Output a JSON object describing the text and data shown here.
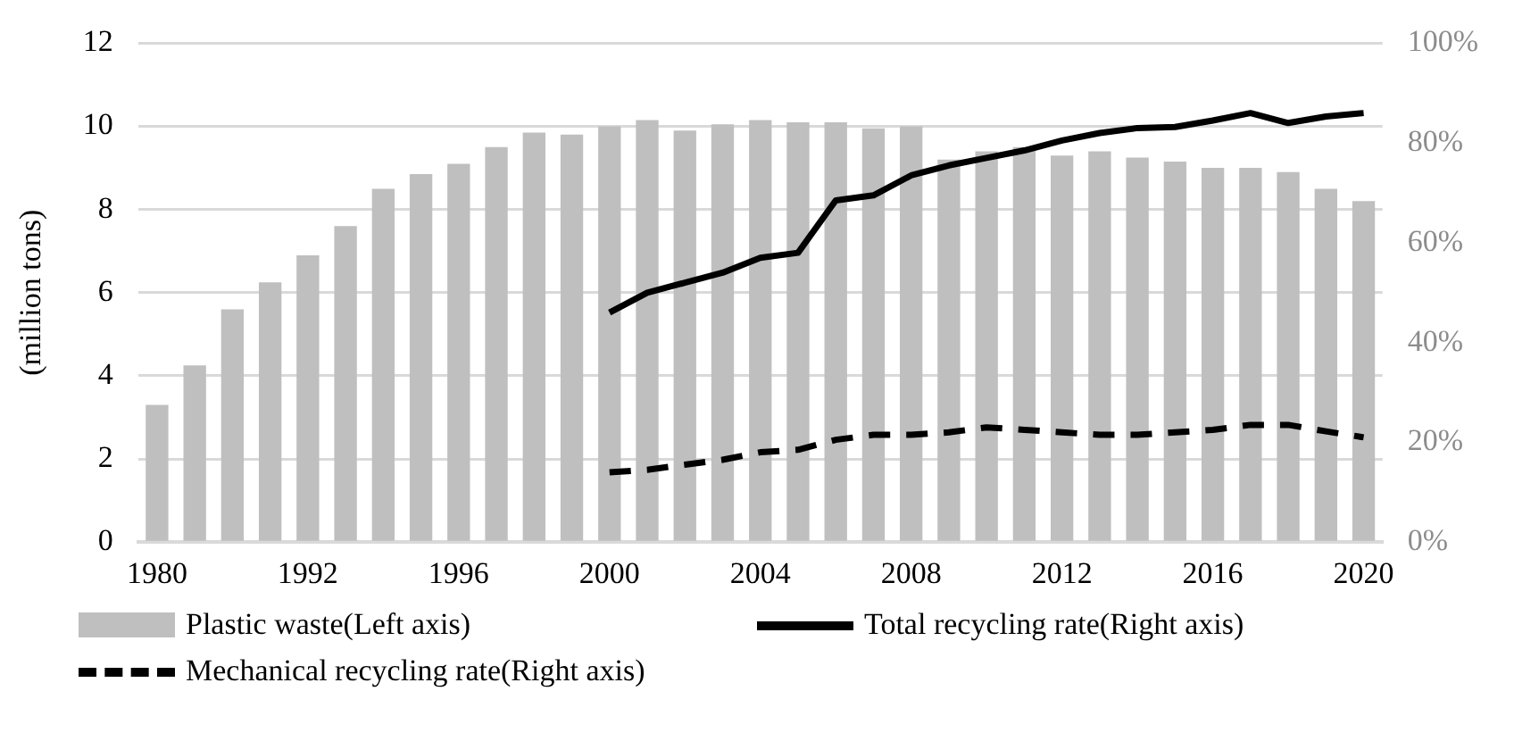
{
  "chart_data": {
    "type": "bar",
    "ylabel": "(million tons)",
    "categories": [
      "1980",
      null,
      null,
      null,
      "1992",
      null,
      null,
      null,
      "1996",
      null,
      null,
      null,
      "2000",
      null,
      null,
      null,
      "2004",
      null,
      null,
      null,
      "2008",
      null,
      null,
      null,
      "2012",
      null,
      null,
      null,
      "2016",
      null,
      null,
      null,
      "2020"
    ],
    "series": [
      {
        "name": "Plastic waste(Left axis)",
        "color": "#bfbfbf",
        "values": [
          3.3,
          4.25,
          5.6,
          6.25,
          6.9,
          7.6,
          8.5,
          8.85,
          9.1,
          9.5,
          9.85,
          9.8,
          10.0,
          10.15,
          9.9,
          10.05,
          10.15,
          10.1,
          10.1,
          9.95,
          10.0,
          9.2,
          9.4,
          9.5,
          9.3,
          9.4,
          9.25,
          9.15,
          9.0,
          9.0,
          8.9,
          8.5,
          8.2
        ]
      },
      {
        "name": "Total recycling rate(Right axis)",
        "type": "line",
        "axis": "y2",
        "color": "#000000",
        "line_style": "solid",
        "values": [
          null,
          null,
          null,
          null,
          null,
          null,
          null,
          null,
          null,
          null,
          null,
          null,
          46,
          50,
          52,
          54,
          57,
          58,
          68.5,
          69.5,
          73.5,
          75.5,
          77,
          78.5,
          80.5,
          82,
          83,
          83.2,
          84.5,
          86,
          84,
          85.3,
          86
        ]
      },
      {
        "name": "Mechanical recycling rate(Right axis)",
        "type": "line",
        "axis": "y2",
        "color": "#000000",
        "line_style": "dashed",
        "values": [
          null,
          null,
          null,
          null,
          null,
          null,
          null,
          null,
          null,
          null,
          null,
          null,
          14,
          14.5,
          15.5,
          16.5,
          18,
          18.5,
          20.5,
          21.5,
          21.5,
          22,
          23,
          22.5,
          22,
          21.5,
          21.5,
          22,
          22.5,
          23.5,
          23.5,
          22.2,
          21
        ]
      }
    ],
    "ylim": [
      0,
      12
    ],
    "yticks": [
      0,
      2,
      4,
      6,
      8,
      10,
      12
    ],
    "y2lim": [
      0,
      100
    ],
    "y2ticks": [
      {
        "value": 0,
        "label": "0%"
      },
      {
        "value": 20,
        "label": "20%"
      },
      {
        "value": 40,
        "label": "40%"
      },
      {
        "value": 60,
        "label": "60%"
      },
      {
        "value": 80,
        "label": "80%"
      },
      {
        "value": 100,
        "label": "100%"
      }
    ],
    "grid": "y",
    "legend": "bottom",
    "marker": "none"
  }
}
